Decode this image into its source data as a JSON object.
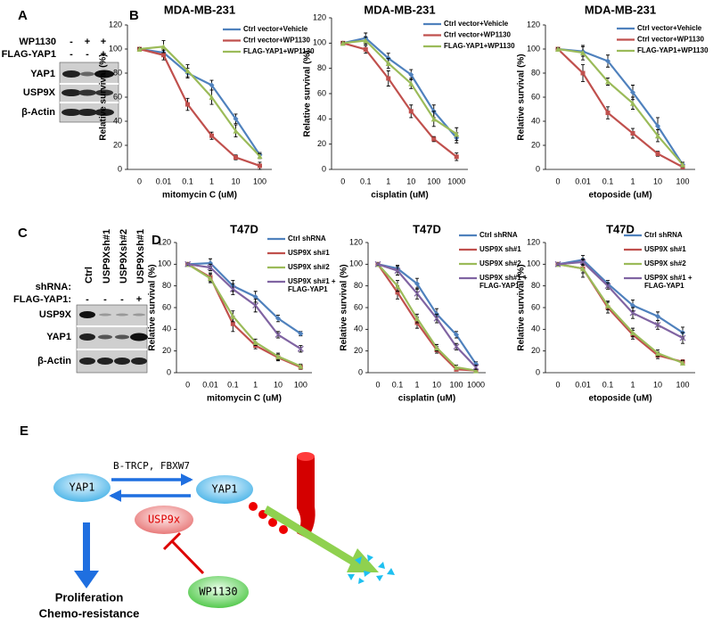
{
  "panel_labels": [
    "A",
    "B",
    "C",
    "D",
    "E"
  ],
  "blot_a": {
    "treatments": [
      {
        "label": "WP1130",
        "signs": [
          "-",
          "+",
          "+"
        ]
      },
      {
        "label": "FLAG-YAP1",
        "signs": [
          "-",
          "-",
          "+"
        ]
      }
    ],
    "rows": [
      "YAP1",
      "USP9X",
      "β-Actin"
    ]
  },
  "blot_c": {
    "lanes": [
      "Ctrl",
      "USP9Xsh#1",
      "USP9Xsh#2",
      "USP9Xsh#1"
    ],
    "shrna_label": "shRNA:",
    "flag_label": "FLAG-YAP1:",
    "flag_signs": [
      "-",
      "-",
      "-",
      "+"
    ],
    "rows": [
      "USP9X",
      "YAP1",
      "β-Actin"
    ]
  },
  "chart_data": [
    {
      "type": "line",
      "title": "MDA-MB-231",
      "x_label": "mitomycin C (uM)",
      "y_label": "Relative survival (%)",
      "categories": [
        "0",
        "0.01",
        "0.1",
        "1",
        "10",
        "100"
      ],
      "ylim": [
        0,
        120
      ],
      "yticks": [
        0,
        20,
        40,
        60,
        80,
        100,
        120
      ],
      "series": [
        {
          "name": "Ctrl vector+Vehicle",
          "color": "#4f81bd",
          "values": [
            100,
            97,
            80,
            70,
            42,
            12
          ],
          "errors": [
            1,
            3,
            4,
            4,
            4,
            2
          ]
        },
        {
          "name": "Ctrl vector+WP1130",
          "color": "#c0504d",
          "values": [
            100,
            95,
            54,
            28,
            10,
            3
          ],
          "errors": [
            1,
            4,
            5,
            3,
            2,
            3
          ]
        },
        {
          "name": "FLAG-YAP1+WP1130",
          "color": "#9bbb59",
          "values": [
            100,
            102,
            82,
            60,
            32,
            11
          ],
          "errors": [
            1,
            5,
            5,
            6,
            5,
            2
          ]
        }
      ]
    },
    {
      "type": "line",
      "title": "MDA-MB-231",
      "x_label": "cisplatin (uM)",
      "y_label": "Relative survival (%)",
      "categories": [
        "0",
        "0.1",
        "1",
        "10",
        "100",
        "1000"
      ],
      "ylim": [
        0,
        120
      ],
      "yticks": [
        0,
        20,
        40,
        60,
        80,
        100,
        120
      ],
      "series": [
        {
          "name": "Ctrl vector+Vehicle",
          "color": "#4f81bd",
          "values": [
            100,
            104,
            88,
            75,
            46,
            25
          ],
          "errors": [
            1,
            4,
            4,
            4,
            5,
            4
          ]
        },
        {
          "name": "Ctrl vector+WP1130",
          "color": "#c0504d",
          "values": [
            100,
            95,
            72,
            46,
            24,
            10
          ],
          "errors": [
            1,
            3,
            6,
            5,
            2,
            3
          ]
        },
        {
          "name": "FLAG-YAP1+WP1130",
          "color": "#9bbb59",
          "values": [
            100,
            102,
            84,
            68,
            40,
            28
          ],
          "errors": [
            1,
            3,
            4,
            4,
            6,
            5
          ]
        }
      ]
    },
    {
      "type": "line",
      "title": "MDA-MB-231",
      "x_label": "etoposide (uM)",
      "y_label": "Relative survival (%)",
      "categories": [
        "0",
        "0.01",
        "0.1",
        "1",
        "10",
        "100"
      ],
      "ylim": [
        0,
        120
      ],
      "yticks": [
        0,
        20,
        40,
        60,
        80,
        100,
        120
      ],
      "series": [
        {
          "name": "Ctrl vector+Vehicle",
          "color": "#4f81bd",
          "values": [
            100,
            98,
            90,
            64,
            36,
            4
          ],
          "errors": [
            1,
            4,
            5,
            6,
            7,
            2
          ]
        },
        {
          "name": "Ctrl vector+WP1130",
          "color": "#c0504d",
          "values": [
            100,
            80,
            47,
            30,
            13,
            2
          ],
          "errors": [
            1,
            7,
            5,
            4,
            2,
            1
          ]
        },
        {
          "name": "FLAG-YAP1+WP1130",
          "color": "#9bbb59",
          "values": [
            100,
            97,
            73,
            55,
            28,
            4
          ],
          "errors": [
            1,
            6,
            3,
            5,
            5,
            2
          ]
        }
      ]
    },
    {
      "type": "line",
      "title": "T47D",
      "x_label": "mitomycin C (uM)",
      "y_label": "Relative survival (%)",
      "categories": [
        "0",
        "0.01",
        "0.1",
        "1",
        "10",
        "100"
      ],
      "ylim": [
        0,
        120
      ],
      "yticks": [
        0,
        20,
        40,
        60,
        80,
        100,
        120
      ],
      "series": [
        {
          "name": "Ctrl shRNA",
          "color": "#4f81bd",
          "values": [
            100,
            101,
            80,
            70,
            50,
            36
          ],
          "errors": [
            1,
            4,
            5,
            5,
            3,
            2
          ]
        },
        {
          "name": "USP9X sh#1",
          "color": "#c0504d",
          "values": [
            100,
            88,
            45,
            25,
            14,
            5
          ],
          "errors": [
            1,
            4,
            7,
            3,
            3,
            2
          ]
        },
        {
          "name": "USP9X sh#2",
          "color": "#9bbb59",
          "values": [
            100,
            87,
            52,
            28,
            15,
            6
          ],
          "errors": [
            1,
            4,
            5,
            3,
            3,
            2
          ]
        },
        {
          "name": "USP9X sh#1 + FLAG-YAP1",
          "color": "#8064a2",
          "values": [
            100,
            97,
            77,
            62,
            35,
            22
          ],
          "errors": [
            1,
            3,
            5,
            6,
            3,
            3
          ]
        }
      ]
    },
    {
      "type": "line",
      "title": "T47D",
      "x_label": "cisplatin (uM)",
      "y_label": "Relative survival (%)",
      "categories": [
        "0",
        "0.1",
        "1",
        "10",
        "100",
        "1000"
      ],
      "ylim": [
        0,
        120
      ],
      "yticks": [
        0,
        20,
        40,
        60,
        80,
        100,
        120
      ],
      "series": [
        {
          "name": "Ctrl shRNA",
          "color": "#4f81bd",
          "values": [
            100,
            96,
            82,
            54,
            35,
            8
          ],
          "errors": [
            1,
            3,
            5,
            5,
            3,
            2
          ]
        },
        {
          "name": "USP9X sh#1",
          "color": "#c0504d",
          "values": [
            100,
            74,
            46,
            21,
            3,
            2
          ],
          "errors": [
            1,
            6,
            5,
            3,
            1,
            1
          ]
        },
        {
          "name": "USP9X sh#2",
          "color": "#9bbb59",
          "values": [
            100,
            80,
            50,
            23,
            5,
            2
          ],
          "errors": [
            1,
            5,
            4,
            3,
            2,
            1
          ]
        },
        {
          "name": "USP9X sh#1 + FLAG-YAP1",
          "color": "#8064a2",
          "values": [
            100,
            94,
            73,
            50,
            24,
            5
          ],
          "errors": [
            1,
            4,
            5,
            4,
            3,
            2
          ]
        }
      ]
    },
    {
      "type": "line",
      "title": "T47D",
      "x_label": "etoposide (uM)",
      "y_label": "Relative survival (%)",
      "categories": [
        "0",
        "0.01",
        "0.1",
        "1",
        "10",
        "100"
      ],
      "ylim": [
        0,
        120
      ],
      "yticks": [
        0,
        20,
        40,
        60,
        80,
        100,
        120
      ],
      "series": [
        {
          "name": "Ctrl shRNA",
          "color": "#4f81bd",
          "values": [
            100,
            104,
            82,
            62,
            52,
            37
          ],
          "errors": [
            1,
            4,
            3,
            5,
            4,
            5
          ]
        },
        {
          "name": "USP9X sh#1",
          "color": "#c0504d",
          "values": [
            100,
            96,
            60,
            35,
            16,
            10
          ],
          "errors": [
            1,
            8,
            5,
            4,
            3,
            2
          ]
        },
        {
          "name": "USP9X sh#2",
          "color": "#9bbb59",
          "values": [
            100,
            96,
            62,
            37,
            18,
            9
          ],
          "errors": [
            1,
            4,
            4,
            4,
            3,
            2
          ]
        },
        {
          "name": "USP9X sh#1 + FLAG-YAP1",
          "color": "#8064a2",
          "values": [
            100,
            102,
            80,
            55,
            44,
            32
          ],
          "errors": [
            1,
            3,
            3,
            5,
            4,
            5
          ]
        }
      ]
    }
  ],
  "diagram": {
    "left_node": "YAP1",
    "right_node": "YAP1",
    "enzymes": "B-TRCP, FBXW7",
    "dub": "USP9x",
    "inhibitor": "WP1130",
    "outcomes": [
      "Proliferation",
      "Chemo-resistance"
    ]
  }
}
